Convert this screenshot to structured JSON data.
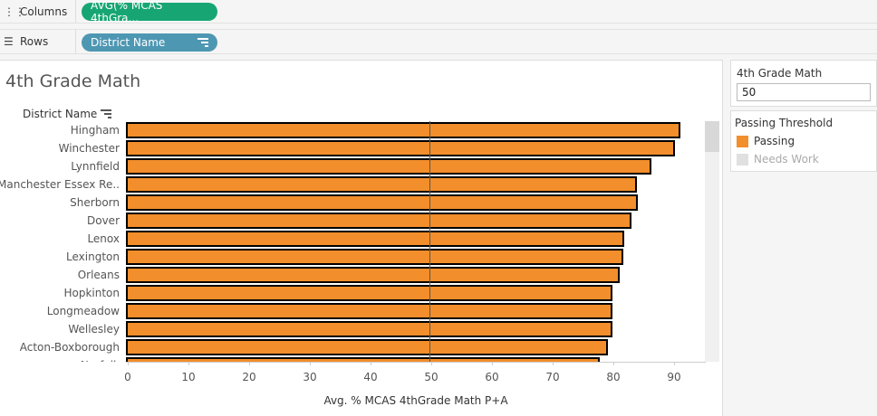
{
  "shelves": {
    "columns": {
      "label": "Columns",
      "pill": "AVG(% MCAS 4thGra..."
    },
    "rows": {
      "label": "Rows",
      "pill": "District Name"
    }
  },
  "sheet": {
    "title": "4th Grade Math",
    "row_header": "District Name"
  },
  "parameter": {
    "label": "4th Grade Math",
    "value": "50"
  },
  "legend": {
    "title": "Passing Threshold",
    "items": [
      {
        "label": "Passing",
        "color": "#f28e2b"
      },
      {
        "label": "Needs Work",
        "color": "#e0e0e0"
      }
    ]
  },
  "chart_data": {
    "type": "bar",
    "orientation": "horizontal",
    "categories": [
      "Hingham",
      "Winchester",
      "Lynnfield",
      "Manchester Essex Re..",
      "Sherborn",
      "Dover",
      "Lenox",
      "Lexington",
      "Orleans",
      "Hopkinton",
      "Longmeadow",
      "Wellesley",
      "Acton-Boxborough",
      "Norfolk"
    ],
    "values": [
      91.3,
      90.4,
      86.6,
      84.2,
      84.3,
      83.3,
      82.1,
      81.9,
      81.3,
      80.2,
      80.2,
      80.1,
      79.4,
      78.0
    ],
    "reference_line": 50,
    "xlabel": "Avg. % MCAS 4thGrade Math P+A",
    "xlim": [
      0,
      95
    ],
    "ticks": [
      "0",
      "10",
      "20",
      "30",
      "40",
      "50",
      "60",
      "70",
      "80",
      "90"
    ],
    "bar_color": "#f28e2b"
  }
}
